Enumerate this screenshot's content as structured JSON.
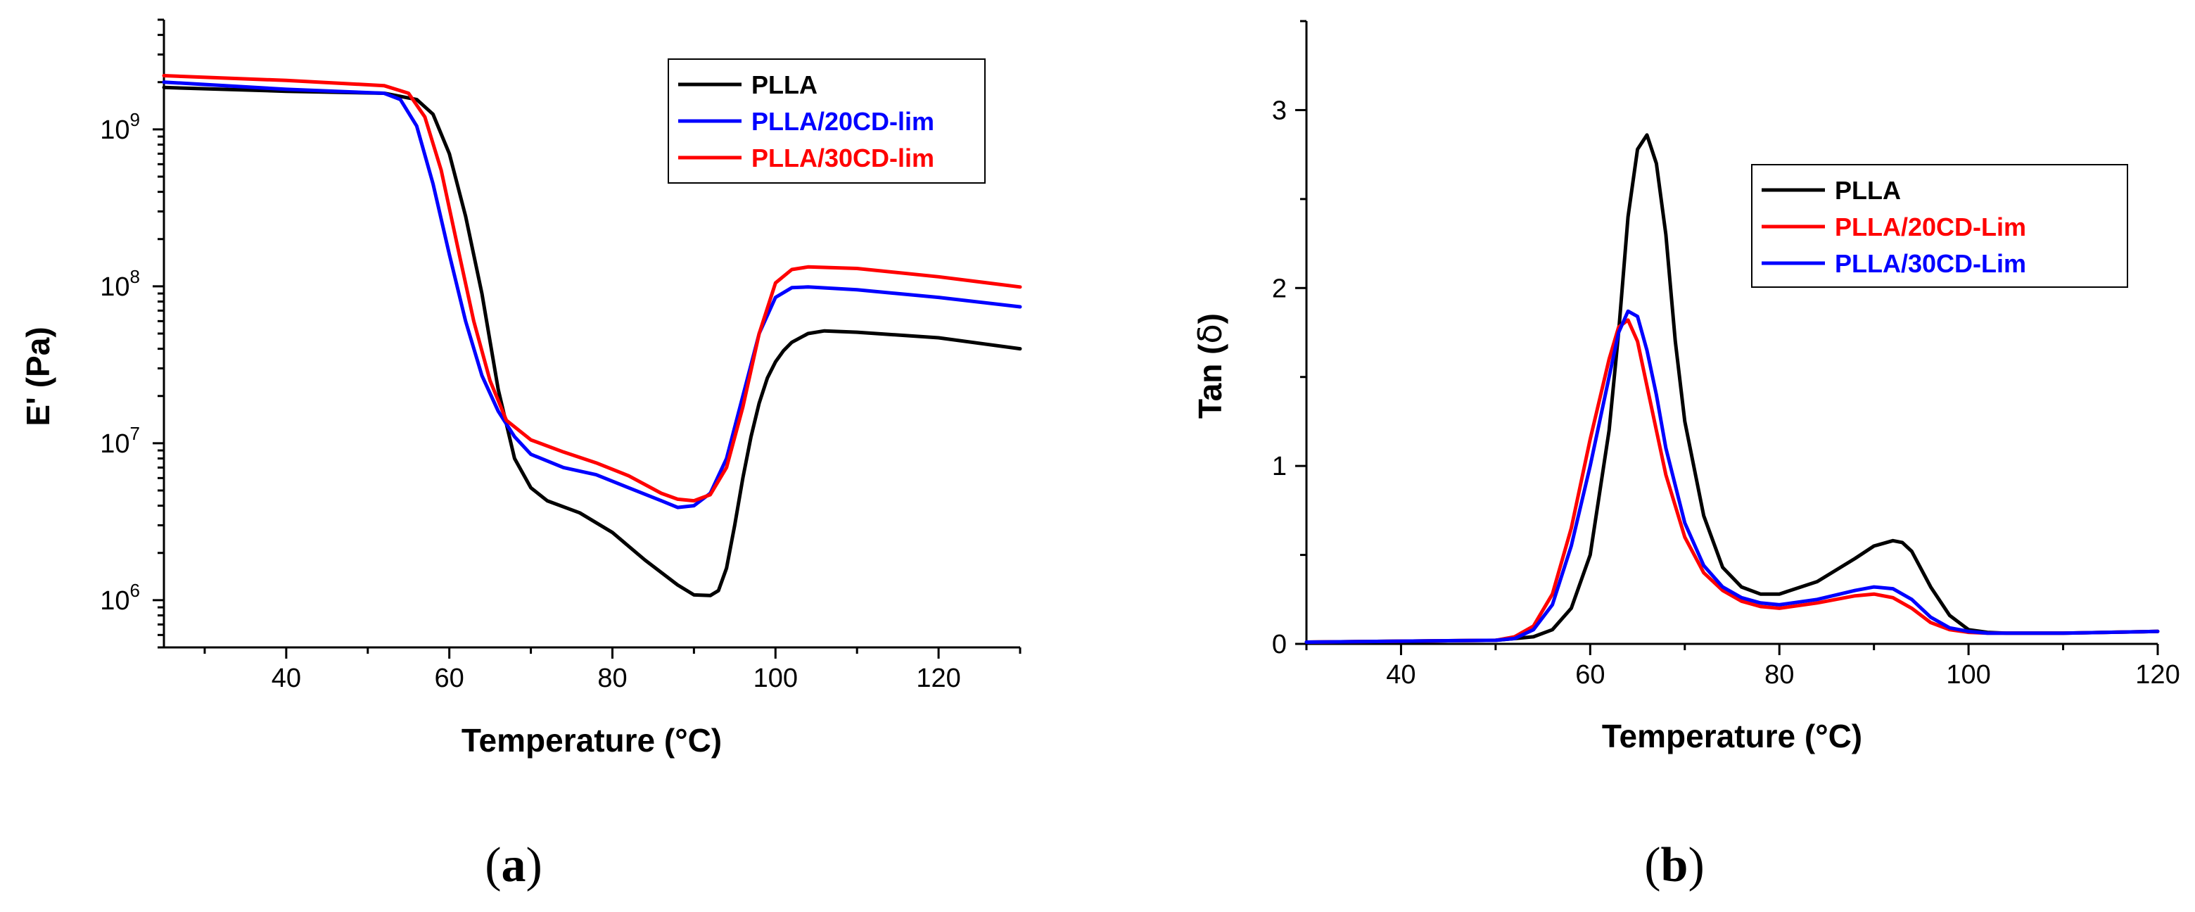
{
  "chart_data": [
    {
      "type": "line",
      "panel_label": "a",
      "xlabel": "Temperature (°C)",
      "ylabel": "E' (Pa)",
      "yscale": "log",
      "xlim": [
        25,
        130
      ],
      "ylim": [
        500000,
        5000000000
      ],
      "x_ticks": [
        40,
        60,
        80,
        100,
        120
      ],
      "y_ticks": [
        {
          "value": 1000000,
          "exp": "6"
        },
        {
          "value": 10000000,
          "exp": "7"
        },
        {
          "value": 100000000,
          "exp": "8"
        },
        {
          "value": 1000000000,
          "exp": "9"
        }
      ],
      "legend_position": "top-right",
      "series": [
        {
          "name": "PLLA",
          "color": "#000000",
          "x": [
            25,
            40,
            52,
            56,
            58,
            60,
            62,
            64,
            66,
            68,
            70,
            72,
            76,
            80,
            84,
            88,
            90,
            92,
            93,
            94,
            95,
            96,
            97,
            98,
            99,
            100,
            101,
            102,
            104,
            106,
            110,
            120,
            130
          ],
          "y": [
            1850000000,
            1750000000,
            1700000000,
            1550000000,
            1250000000,
            700000000,
            280000000,
            90000000,
            22000000,
            8000000,
            5200000,
            4300000,
            3600000,
            2700000,
            1800000,
            1250000,
            1080000,
            1070000,
            1150000,
            1600000,
            3000000,
            6000000,
            11000000,
            18000000,
            26000000,
            33000000,
            39000000,
            44000000,
            50000000,
            52000000,
            51000000,
            47000000,
            40000000
          ]
        },
        {
          "name": "PLLA/20CD-lim",
          "color": "#0000ff",
          "x": [
            25,
            40,
            52,
            54,
            56,
            58,
            60,
            62,
            64,
            66,
            68,
            70,
            74,
            78,
            82,
            86,
            88,
            90,
            92,
            94,
            96,
            98,
            100,
            102,
            104,
            110,
            120,
            130
          ],
          "y": [
            2000000000,
            1800000000,
            1700000000,
            1550000000,
            1050000000,
            450000000,
            160000000,
            60000000,
            27000000,
            16000000,
            11000000,
            8500000,
            7000000,
            6300000,
            5200000,
            4300000,
            3900000,
            4000000,
            4800000,
            8000000,
            20000000,
            50000000,
            85000000,
            98000000,
            99000000,
            95000000,
            85000000,
            74000000
          ]
        },
        {
          "name": "PLLA/30CD-lim",
          "color": "#ff0000",
          "x": [
            25,
            40,
            52,
            55,
            57,
            59,
            61,
            63,
            65,
            67,
            70,
            74,
            78,
            82,
            86,
            88,
            90,
            92,
            94,
            96,
            98,
            100,
            102,
            104,
            110,
            120,
            130
          ],
          "y": [
            2200000000,
            2050000000,
            1900000000,
            1700000000,
            1200000000,
            550000000,
            180000000,
            60000000,
            25000000,
            14000000,
            10500000,
            8800000,
            7500000,
            6200000,
            4800000,
            4400000,
            4300000,
            4700000,
            7000000,
            17000000,
            50000000,
            105000000,
            128000000,
            133000000,
            130000000,
            115000000,
            99000000
          ]
        }
      ]
    },
    {
      "type": "line",
      "panel_label": "b",
      "xlabel": "Temperature (°C)",
      "ylabel_prefix": "Tan (",
      "ylabel_symbol": "δ",
      "ylabel_suffix": ")",
      "xlim": [
        30,
        120
      ],
      "ylim": [
        0,
        3.5
      ],
      "x_ticks": [
        40,
        60,
        80,
        100,
        120
      ],
      "y_ticks": [
        0,
        1,
        2,
        3
      ],
      "legend_position": "top-right",
      "series": [
        {
          "name": "PLLA",
          "color": "#000000",
          "x": [
            30,
            50,
            54,
            56,
            58,
            60,
            62,
            63,
            64,
            65,
            66,
            67,
            68,
            69,
            70,
            72,
            74,
            76,
            78,
            80,
            84,
            88,
            90,
            92,
            93,
            94,
            96,
            98,
            100,
            102,
            104,
            110,
            120
          ],
          "y": [
            0.01,
            0.02,
            0.04,
            0.08,
            0.2,
            0.5,
            1.2,
            1.75,
            2.4,
            2.78,
            2.86,
            2.7,
            2.3,
            1.7,
            1.25,
            0.72,
            0.43,
            0.32,
            0.28,
            0.28,
            0.35,
            0.48,
            0.55,
            0.58,
            0.57,
            0.52,
            0.32,
            0.16,
            0.08,
            0.065,
            0.06,
            0.06,
            0.07
          ]
        },
        {
          "name": "PLLA/20CD-Lim",
          "color": "#ff0000",
          "x": [
            30,
            50,
            52,
            54,
            56,
            58,
            60,
            62,
            63,
            64,
            65,
            66,
            67,
            68,
            70,
            72,
            74,
            76,
            78,
            80,
            84,
            88,
            90,
            92,
            94,
            96,
            98,
            100,
            102,
            104,
            110,
            120
          ],
          "y": [
            0.01,
            0.02,
            0.04,
            0.1,
            0.28,
            0.65,
            1.15,
            1.6,
            1.78,
            1.82,
            1.7,
            1.45,
            1.2,
            0.95,
            0.6,
            0.4,
            0.3,
            0.24,
            0.21,
            0.2,
            0.23,
            0.27,
            0.28,
            0.26,
            0.2,
            0.12,
            0.08,
            0.065,
            0.06,
            0.06,
            0.06,
            0.07
          ]
        },
        {
          "name": "PLLA/30CD-Lim",
          "color": "#0000ff",
          "x": [
            30,
            50,
            52,
            54,
            56,
            58,
            60,
            62,
            63,
            64,
            65,
            66,
            67,
            68,
            70,
            72,
            74,
            76,
            78,
            80,
            84,
            88,
            90,
            92,
            94,
            96,
            98,
            100,
            102,
            104,
            110,
            120
          ],
          "y": [
            0.01,
            0.02,
            0.03,
            0.08,
            0.22,
            0.55,
            1.0,
            1.5,
            1.75,
            1.87,
            1.84,
            1.65,
            1.4,
            1.1,
            0.68,
            0.44,
            0.32,
            0.26,
            0.23,
            0.22,
            0.25,
            0.3,
            0.32,
            0.31,
            0.25,
            0.15,
            0.09,
            0.07,
            0.06,
            0.06,
            0.06,
            0.07
          ]
        }
      ]
    }
  ]
}
